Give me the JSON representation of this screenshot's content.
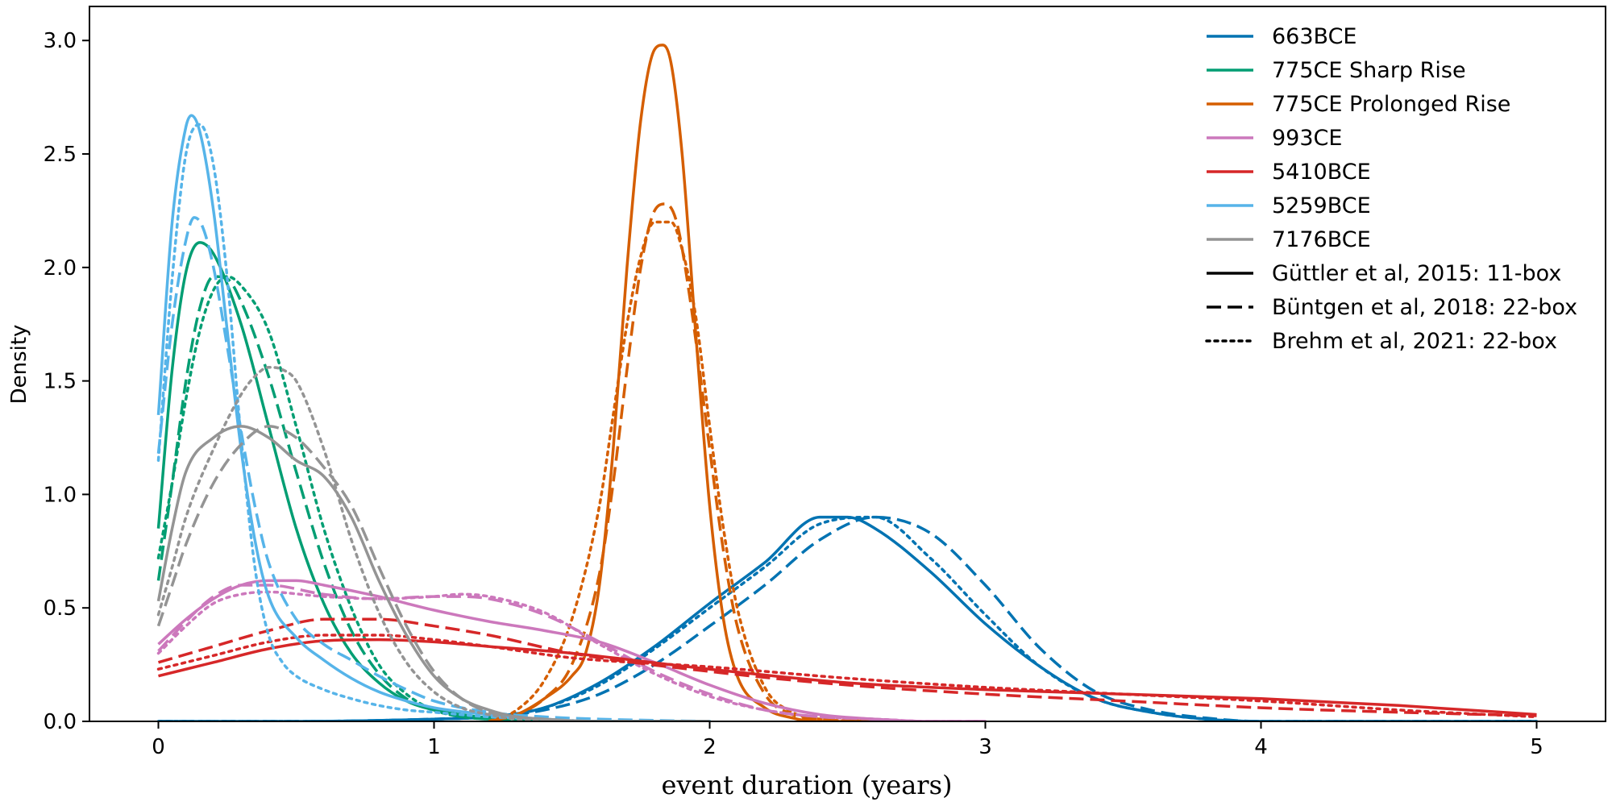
{
  "chart_data": {
    "type": "line",
    "title": "",
    "xlabel": "event duration (years)",
    "ylabel": "Density",
    "xlim": [
      -0.25,
      5.25
    ],
    "ylim": [
      0,
      3.15
    ],
    "grid": false,
    "legend_position": "top-right",
    "x_ticks": [
      "0",
      "1",
      "2",
      "3",
      "4",
      "5"
    ],
    "y_ticks": [
      "0.0",
      "0.5",
      "1.0",
      "1.5",
      "2.0",
      "2.5",
      "3.0"
    ],
    "line_styles": [
      {
        "name": "Güttler et al, 2015: 11-box",
        "dash": "solid"
      },
      {
        "name": "Büntgen et al, 2018: 22-box",
        "dash": "dashed"
      },
      {
        "name": "Brehm et al, 2021: 22-box",
        "dash": "dotted"
      }
    ],
    "series": [
      {
        "name": "663BCE",
        "color": "#0173b2",
        "styles": [
          {
            "dash": "solid",
            "x": [
              0,
              0.5,
              1.0,
              1.2,
              1.4,
              1.6,
              1.8,
              2.0,
              2.2,
              2.4,
              2.5,
              2.6,
              2.8,
              3.0,
              3.2,
              3.4,
              3.6,
              3.8,
              4.0,
              4.5,
              5.0
            ],
            "y": [
              0,
              0,
              0.01,
              0.02,
              0.06,
              0.17,
              0.33,
              0.52,
              0.7,
              0.9,
              0.9,
              0.85,
              0.66,
              0.43,
              0.24,
              0.1,
              0.04,
              0.01,
              0,
              0,
              0
            ]
          },
          {
            "dash": "dashed",
            "x": [
              0,
              0.5,
              1.0,
              1.2,
              1.4,
              1.6,
              1.8,
              2.0,
              2.2,
              2.4,
              2.6,
              2.8,
              3.0,
              3.2,
              3.4,
              3.6,
              3.8,
              4.0,
              4.5,
              5.0
            ],
            "y": [
              0,
              0,
              0.01,
              0.02,
              0.05,
              0.12,
              0.25,
              0.42,
              0.6,
              0.8,
              0.9,
              0.83,
              0.6,
              0.32,
              0.13,
              0.05,
              0.015,
              0,
              0,
              0
            ]
          },
          {
            "dash": "dotted",
            "x": [
              0,
              0.5,
              1.0,
              1.2,
              1.4,
              1.6,
              1.8,
              2.0,
              2.2,
              2.4,
              2.6,
              2.8,
              3.0,
              3.2,
              3.4,
              3.6,
              3.8,
              4.0,
              4.5,
              5.0
            ],
            "y": [
              0,
              0,
              0.01,
              0.02,
              0.06,
              0.16,
              0.32,
              0.5,
              0.68,
              0.87,
              0.9,
              0.72,
              0.47,
              0.24,
              0.1,
              0.04,
              0.01,
              0,
              0,
              0
            ]
          }
        ]
      },
      {
        "name": "775CE Sharp Rise",
        "color": "#029e73",
        "styles": [
          {
            "dash": "solid",
            "x": [
              0,
              0.05,
              0.1,
              0.15,
              0.2,
              0.3,
              0.4,
              0.5,
              0.6,
              0.7,
              0.8,
              0.9,
              1.0,
              1.1,
              1.2,
              1.3,
              1.5,
              2.0
            ],
            "y": [
              0.85,
              1.55,
              1.98,
              2.11,
              2.06,
              1.75,
              1.3,
              0.85,
              0.52,
              0.3,
              0.17,
              0.09,
              0.05,
              0.03,
              0.015,
              0.01,
              0,
              0
            ]
          },
          {
            "dash": "dashed",
            "x": [
              0,
              0.05,
              0.1,
              0.15,
              0.2,
              0.25,
              0.3,
              0.4,
              0.5,
              0.6,
              0.7,
              0.8,
              0.9,
              1.0,
              1.1,
              1.2,
              1.4,
              2.0
            ],
            "y": [
              0.62,
              1.05,
              1.5,
              1.82,
              1.96,
              1.95,
              1.85,
              1.52,
              1.1,
              0.7,
              0.4,
              0.21,
              0.1,
              0.05,
              0.02,
              0.01,
              0,
              0
            ]
          },
          {
            "dash": "dotted",
            "x": [
              0,
              0.05,
              0.1,
              0.15,
              0.2,
              0.25,
              0.3,
              0.4,
              0.5,
              0.6,
              0.7,
              0.8,
              0.9,
              1.0,
              1.1,
              1.2,
              1.4,
              2.0
            ],
            "y": [
              0.72,
              1.05,
              1.42,
              1.72,
              1.9,
              1.96,
              1.92,
              1.72,
              1.3,
              0.85,
              0.5,
              0.25,
              0.12,
              0.05,
              0.02,
              0.01,
              0,
              0
            ]
          }
        ]
      },
      {
        "name": "775CE Prolonged Rise",
        "color": "#d55e00",
        "styles": [
          {
            "dash": "solid",
            "x": [
              1.2,
              1.3,
              1.4,
              1.5,
              1.55,
              1.6,
              1.65,
              1.7,
              1.75,
              1.8,
              1.83,
              1.86,
              1.9,
              1.95,
              2.0,
              2.05,
              2.1,
              2.2,
              2.3,
              2.4,
              2.6
            ],
            "y": [
              0,
              0.03,
              0.1,
              0.2,
              0.3,
              0.6,
              1.2,
              2.0,
              2.65,
              2.96,
              2.98,
              2.9,
              2.5,
              1.7,
              0.95,
              0.45,
              0.2,
              0.06,
              0.015,
              0,
              0
            ]
          },
          {
            "dash": "dashed",
            "x": [
              1.2,
              1.3,
              1.4,
              1.5,
              1.6,
              1.65,
              1.7,
              1.75,
              1.8,
              1.84,
              1.88,
              1.93,
              2.0,
              2.05,
              2.1,
              2.2,
              2.3,
              2.4,
              2.6
            ],
            "y": [
              0,
              0.03,
              0.1,
              0.25,
              0.65,
              1.05,
              1.55,
              2.0,
              2.25,
              2.28,
              2.2,
              1.85,
              1.2,
              0.75,
              0.42,
              0.12,
              0.03,
              0.01,
              0
            ]
          },
          {
            "dash": "dotted",
            "x": [
              1.2,
              1.3,
              1.4,
              1.5,
              1.6,
              1.65,
              1.7,
              1.75,
              1.8,
              1.86,
              1.9,
              1.95,
              2.0,
              2.05,
              2.1,
              2.2,
              2.3,
              2.4,
              2.6
            ],
            "y": [
              0,
              0.05,
              0.18,
              0.45,
              0.95,
              1.35,
              1.75,
              2.05,
              2.2,
              2.2,
              2.08,
              1.78,
              1.3,
              0.85,
              0.5,
              0.15,
              0.04,
              0.01,
              0
            ]
          }
        ]
      },
      {
        "name": "993CE",
        "color": "#cc78bc",
        "styles": [
          {
            "dash": "solid",
            "x": [
              0,
              0.1,
              0.2,
              0.3,
              0.4,
              0.5,
              0.6,
              0.8,
              1.0,
              1.2,
              1.4,
              1.6,
              1.8,
              2.0,
              2.2,
              2.4,
              2.6,
              2.8,
              3.0
            ],
            "y": [
              0.34,
              0.45,
              0.54,
              0.6,
              0.62,
              0.62,
              0.6,
              0.55,
              0.49,
              0.44,
              0.4,
              0.35,
              0.26,
              0.16,
              0.08,
              0.03,
              0.01,
              0,
              0
            ]
          },
          {
            "dash": "dashed",
            "x": [
              0,
              0.1,
              0.2,
              0.3,
              0.4,
              0.6,
              0.8,
              1.0,
              1.1,
              1.2,
              1.4,
              1.6,
              1.8,
              2.0,
              2.2,
              2.4,
              2.6,
              2.8,
              3.0
            ],
            "y": [
              0.31,
              0.44,
              0.55,
              0.6,
              0.6,
              0.56,
              0.54,
              0.55,
              0.55,
              0.54,
              0.47,
              0.35,
              0.22,
              0.12,
              0.05,
              0.02,
              0.01,
              0,
              0
            ]
          },
          {
            "dash": "dotted",
            "x": [
              0,
              0.1,
              0.2,
              0.3,
              0.4,
              0.6,
              0.8,
              1.0,
              1.1,
              1.2,
              1.4,
              1.6,
              1.8,
              2.0,
              2.2,
              2.4,
              2.6,
              2.8,
              3.0
            ],
            "y": [
              0.3,
              0.42,
              0.52,
              0.56,
              0.57,
              0.55,
              0.54,
              0.55,
              0.56,
              0.55,
              0.48,
              0.34,
              0.21,
              0.11,
              0.05,
              0.02,
              0.01,
              0,
              0
            ]
          }
        ]
      },
      {
        "name": "5410BCE",
        "color": "#d62728",
        "styles": [
          {
            "dash": "solid",
            "x": [
              0,
              0.2,
              0.4,
              0.6,
              0.8,
              1.0,
              1.2,
              1.5,
              2.0,
              2.5,
              3.0,
              3.5,
              4.0,
              4.5,
              5.0
            ],
            "y": [
              0.2,
              0.26,
              0.32,
              0.355,
              0.36,
              0.35,
              0.33,
              0.3,
              0.23,
              0.17,
              0.14,
              0.12,
              0.1,
              0.07,
              0.03
            ]
          },
          {
            "dash": "dashed",
            "x": [
              0,
              0.2,
              0.4,
              0.6,
              0.8,
              1.0,
              1.2,
              1.5,
              2.0,
              2.5,
              3.0,
              3.5,
              4.0,
              4.5,
              5.0
            ],
            "y": [
              0.26,
              0.33,
              0.4,
              0.45,
              0.45,
              0.42,
              0.38,
              0.3,
              0.22,
              0.16,
              0.12,
              0.09,
              0.06,
              0.04,
              0.025
            ]
          },
          {
            "dash": "dotted",
            "x": [
              0,
              0.2,
              0.4,
              0.6,
              0.8,
              1.0,
              1.2,
              1.5,
              2.0,
              2.5,
              3.0,
              3.5,
              4.0,
              4.5,
              5.0
            ],
            "y": [
              0.23,
              0.29,
              0.35,
              0.38,
              0.38,
              0.36,
              0.33,
              0.28,
              0.24,
              0.19,
              0.15,
              0.12,
              0.09,
              0.05,
              0.02
            ]
          }
        ]
      },
      {
        "name": "5259BCE",
        "color": "#56b4e9",
        "styles": [
          {
            "dash": "solid",
            "x": [
              0,
              0.05,
              0.1,
              0.12,
              0.15,
              0.2,
              0.25,
              0.3,
              0.35,
              0.4,
              0.5,
              0.6,
              0.7,
              0.8,
              0.9,
              1.0,
              1.2,
              1.4,
              1.6,
              2.0
            ],
            "y": [
              1.35,
              2.2,
              2.62,
              2.67,
              2.6,
              2.25,
              1.72,
              1.2,
              0.8,
              0.55,
              0.37,
              0.27,
              0.19,
              0.13,
              0.09,
              0.06,
              0.03,
              0.01,
              0,
              0
            ]
          },
          {
            "dash": "dashed",
            "x": [
              0,
              0.05,
              0.1,
              0.13,
              0.16,
              0.2,
              0.25,
              0.3,
              0.35,
              0.4,
              0.5,
              0.6,
              0.7,
              0.8,
              0.9,
              1.0,
              1.2,
              1.4,
              1.6,
              2.0
            ],
            "y": [
              1.18,
              1.75,
              2.12,
              2.22,
              2.18,
              2.0,
              1.65,
              1.28,
              0.95,
              0.7,
              0.45,
              0.34,
              0.27,
              0.2,
              0.14,
              0.09,
              0.04,
              0.02,
              0.01,
              0
            ]
          },
          {
            "dash": "dotted",
            "x": [
              0,
              0.05,
              0.1,
              0.15,
              0.2,
              0.25,
              0.3,
              0.35,
              0.4,
              0.45,
              0.5,
              0.6,
              0.7,
              0.8,
              0.9,
              1.0,
              1.2,
              1.4,
              1.6,
              2.0
            ],
            "y": [
              1.15,
              1.95,
              2.5,
              2.63,
              2.45,
              1.95,
              1.25,
              0.68,
              0.38,
              0.26,
              0.2,
              0.14,
              0.1,
              0.07,
              0.05,
              0.04,
              0.02,
              0.01,
              0,
              0
            ]
          }
        ]
      },
      {
        "name": "7176BCE",
        "color": "#949494",
        "styles": [
          {
            "dash": "solid",
            "x": [
              0,
              0.05,
              0.1,
              0.2,
              0.3,
              0.4,
              0.5,
              0.6,
              0.7,
              0.8,
              0.9,
              1.0,
              1.1,
              1.2,
              1.3,
              1.4,
              1.6,
              2.0
            ],
            "y": [
              0.53,
              0.85,
              1.1,
              1.25,
              1.3,
              1.25,
              1.15,
              1.08,
              0.9,
              0.62,
              0.38,
              0.2,
              0.1,
              0.05,
              0.02,
              0.01,
              0,
              0
            ]
          },
          {
            "dash": "dashed",
            "x": [
              0,
              0.05,
              0.1,
              0.2,
              0.3,
              0.4,
              0.5,
              0.6,
              0.7,
              0.8,
              0.9,
              1.0,
              1.1,
              1.2,
              1.3,
              1.4,
              1.6,
              2.0
            ],
            "y": [
              0.42,
              0.6,
              0.78,
              1.05,
              1.22,
              1.3,
              1.25,
              1.12,
              0.95,
              0.68,
              0.42,
              0.22,
              0.1,
              0.04,
              0.02,
              0.01,
              0,
              0
            ]
          },
          {
            "dash": "dotted",
            "x": [
              0,
              0.05,
              0.1,
              0.2,
              0.3,
              0.35,
              0.4,
              0.45,
              0.5,
              0.6,
              0.7,
              0.8,
              0.9,
              1.0,
              1.1,
              1.2,
              1.3,
              1.6,
              2.0
            ],
            "y": [
              0.47,
              0.68,
              0.9,
              1.2,
              1.44,
              1.52,
              1.56,
              1.55,
              1.5,
              1.2,
              0.8,
              0.48,
              0.26,
              0.13,
              0.06,
              0.03,
              0.01,
              0,
              0
            ]
          }
        ]
      }
    ]
  }
}
